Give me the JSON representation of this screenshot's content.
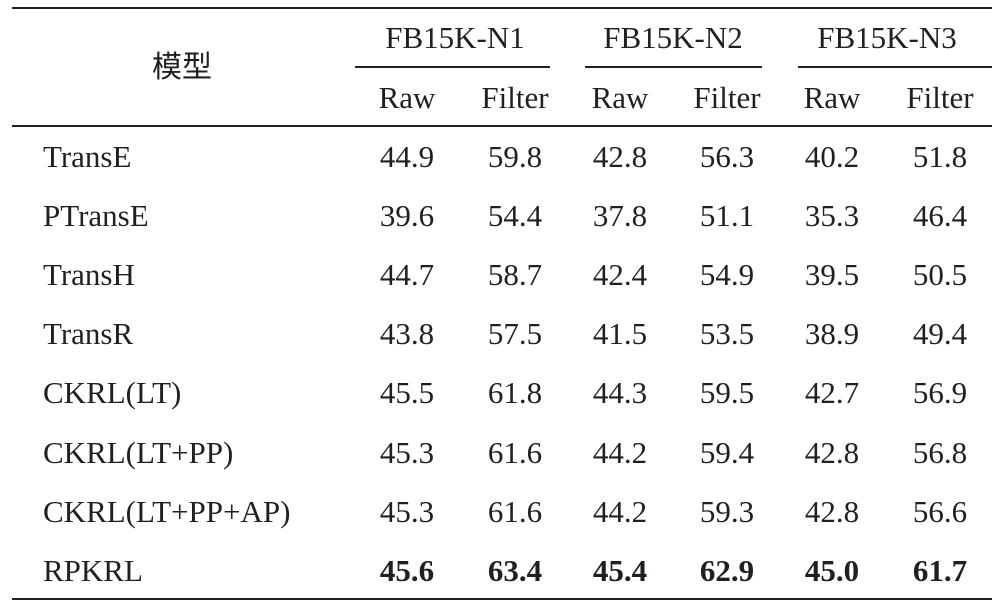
{
  "table": {
    "header_model": "模型",
    "groups": [
      "FB15K-N1",
      "FB15K-N2",
      "FB15K-N3"
    ],
    "subheaders": [
      "Raw",
      "Filter",
      "Raw",
      "Filter",
      "Raw",
      "Filter"
    ],
    "rows": [
      {
        "model": "TransE",
        "values": [
          "44.9",
          "59.8",
          "42.8",
          "56.3",
          "40.2",
          "51.8"
        ],
        "bold": false
      },
      {
        "model": "PTransE",
        "values": [
          "39.6",
          "54.4",
          "37.8",
          "51.1",
          "35.3",
          "46.4"
        ],
        "bold": false
      },
      {
        "model": "TransH",
        "values": [
          "44.7",
          "58.7",
          "42.4",
          "54.9",
          "39.5",
          "50.5"
        ],
        "bold": false
      },
      {
        "model": "TransR",
        "values": [
          "43.8",
          "57.5",
          "41.5",
          "53.5",
          "38.9",
          "49.4"
        ],
        "bold": false
      },
      {
        "model": "CKRL(LT)",
        "values": [
          "45.5",
          "61.8",
          "44.3",
          "59.5",
          "42.7",
          "56.9"
        ],
        "bold": false
      },
      {
        "model": "CKRL(LT+PP)",
        "values": [
          "45.3",
          "61.6",
          "44.2",
          "59.4",
          "42.8",
          "56.8"
        ],
        "bold": false
      },
      {
        "model": "CKRL(LT+PP+AP)",
        "values": [
          "45.3",
          "61.6",
          "44.2",
          "59.3",
          "42.8",
          "56.6"
        ],
        "bold": false
      },
      {
        "model": "RPKRL",
        "values": [
          "45.6",
          "63.4",
          "45.4",
          "62.9",
          "45.0",
          "61.7"
        ],
        "bold": true
      }
    ]
  }
}
